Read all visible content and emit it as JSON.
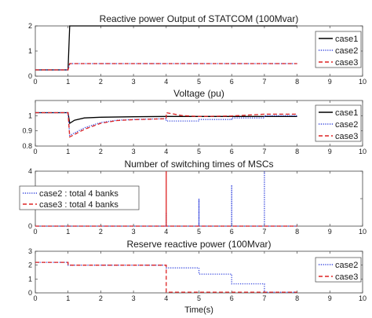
{
  "chart_data": [
    {
      "type": "line",
      "title": "Reactive power Output of STATCOM (100Mvar)",
      "xlim": [
        0,
        10
      ],
      "ylim": [
        0,
        2
      ],
      "xticks": [
        0,
        1,
        2,
        3,
        4,
        5,
        6,
        7,
        8,
        9,
        10
      ],
      "yticks": [
        0,
        1,
        2
      ],
      "grid": false,
      "legend_position": "right",
      "series": [
        {
          "name": "case1",
          "color": "#000000",
          "style": "solid",
          "x": [
            0,
            1,
            1.05,
            8
          ],
          "y": [
            0.25,
            0.25,
            2.0,
            2.0
          ]
        },
        {
          "name": "case2",
          "color": "#3344dd",
          "style": "dotted",
          "x": [
            0,
            1,
            1.05,
            8
          ],
          "y": [
            0.25,
            0.25,
            0.5,
            0.5
          ]
        },
        {
          "name": "case3",
          "color": "#dd2222",
          "style": "dashed",
          "x": [
            0,
            1,
            1.05,
            8
          ],
          "y": [
            0.25,
            0.25,
            0.5,
            0.5
          ]
        }
      ]
    },
    {
      "type": "line",
      "title": "Voltage (pu)",
      "xlim": [
        0,
        10
      ],
      "ylim": [
        0.8,
        1.1
      ],
      "xticks": [
        0,
        1,
        2,
        3,
        4,
        5,
        6,
        7,
        8,
        9,
        10
      ],
      "yticks": [
        0.8,
        0.9,
        1
      ],
      "grid": false,
      "legend_position": "right",
      "series": [
        {
          "name": "case1",
          "color": "#000000",
          "style": "solid",
          "x": [
            0,
            1,
            1.05,
            1.2,
            1.5,
            2,
            3,
            4,
            8
          ],
          "y": [
            1.02,
            1.02,
            0.95,
            0.97,
            0.985,
            0.99,
            0.993,
            0.995,
            0.995
          ]
        },
        {
          "name": "case2",
          "color": "#3344dd",
          "style": "dotted",
          "x": [
            0,
            1,
            1.05,
            1.5,
            2,
            2.5,
            3,
            3.5,
            4,
            4,
            5,
            5,
            6,
            6,
            7,
            7,
            8
          ],
          "y": [
            1.02,
            1.02,
            0.87,
            0.92,
            0.955,
            0.97,
            0.975,
            0.978,
            0.98,
            0.965,
            0.965,
            0.975,
            0.975,
            0.985,
            0.985,
            1.0,
            1.0
          ]
        },
        {
          "name": "case3",
          "color": "#dd2222",
          "style": "dashed",
          "x": [
            0,
            1,
            1.05,
            1.5,
            2,
            2.5,
            3,
            3.5,
            4,
            4,
            4.5,
            5,
            6,
            7,
            8
          ],
          "y": [
            1.02,
            1.02,
            0.86,
            0.91,
            0.95,
            0.968,
            0.974,
            0.977,
            0.98,
            1.02,
            1.0,
            0.995,
            0.998,
            1.01,
            1.01
          ]
        }
      ]
    },
    {
      "type": "line",
      "title": "Number of switching times of MSCs",
      "xlim": [
        0,
        10
      ],
      "ylim": [
        0,
        4
      ],
      "xticks": [
        0,
        1,
        2,
        3,
        4,
        5,
        6,
        7,
        8,
        9,
        10
      ],
      "yticks": [
        0,
        2,
        4
      ],
      "grid": false,
      "legend_position": "left",
      "series": [
        {
          "name": "case2 : total 4 banks",
          "color": "#3344dd",
          "style": "dotted",
          "x": [
            0,
            4,
            4,
            4,
            5,
            5,
            5,
            6,
            6,
            6,
            7,
            7,
            7,
            8
          ],
          "y": [
            0,
            0,
            1,
            0,
            0,
            2,
            0,
            0,
            3,
            0,
            0,
            4,
            0,
            0
          ]
        },
        {
          "name": "case3 : total 4 banks",
          "color": "#dd2222",
          "style": "dashed",
          "x": [
            0,
            4,
            4,
            4,
            8
          ],
          "y": [
            0,
            0,
            4,
            0,
            0
          ]
        }
      ]
    },
    {
      "type": "line",
      "title": "Reserve reactive power (100Mvar)",
      "xlabel": "Time(s)",
      "xlim": [
        0,
        10
      ],
      "ylim": [
        0,
        3
      ],
      "xticks": [
        0,
        1,
        2,
        3,
        4,
        5,
        6,
        7,
        8,
        9,
        10
      ],
      "yticks": [
        0,
        1,
        2,
        3
      ],
      "grid": false,
      "legend_position": "right",
      "series": [
        {
          "name": "case2",
          "color": "#3344dd",
          "style": "dotted",
          "x": [
            0,
            1,
            1,
            4,
            4,
            5,
            5,
            6,
            6,
            7,
            7,
            8
          ],
          "y": [
            2.2,
            2.2,
            2.0,
            2.0,
            1.8,
            1.8,
            1.35,
            1.35,
            0.65,
            0.65,
            0.05,
            0.05
          ]
        },
        {
          "name": "case3",
          "color": "#dd2222",
          "style": "dashed",
          "x": [
            0,
            1,
            1,
            4,
            4,
            8
          ],
          "y": [
            2.2,
            2.2,
            2.0,
            2.0,
            0.05,
            0.05
          ]
        }
      ]
    }
  ]
}
